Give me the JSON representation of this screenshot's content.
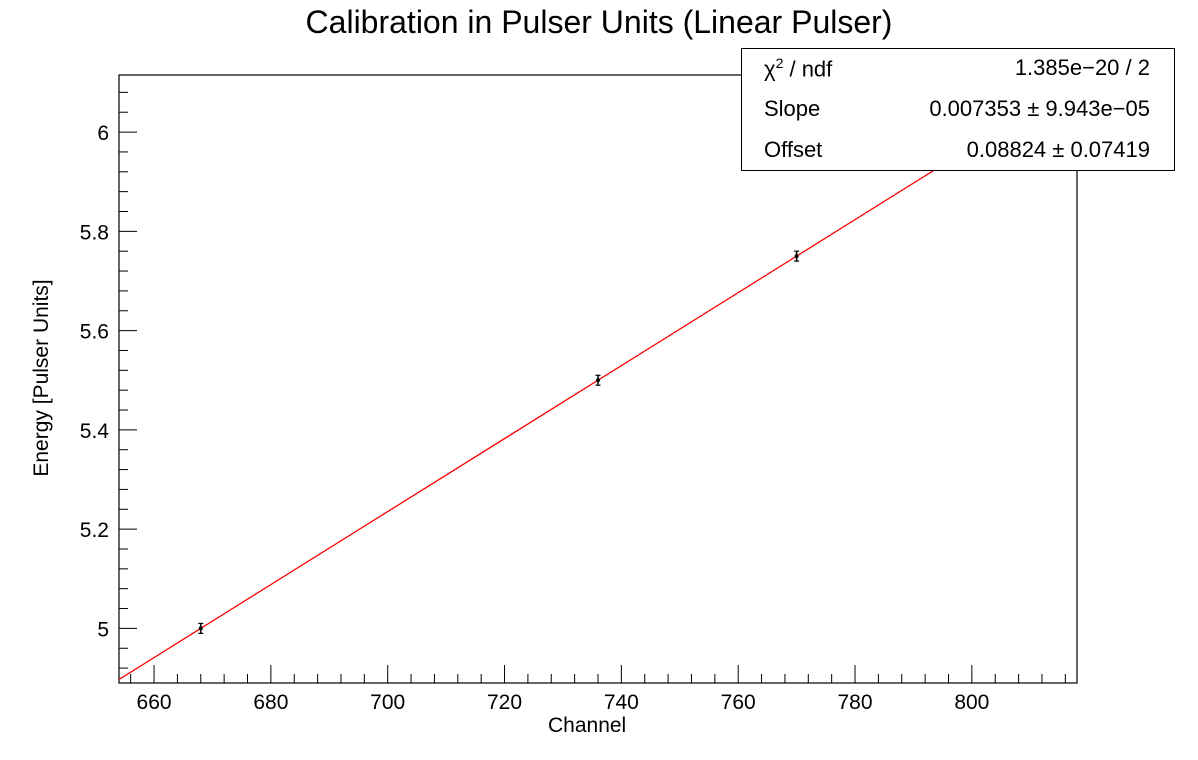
{
  "chart_data": {
    "type": "scatter",
    "title": "Calibration in Pulser Units (Linear Pulser)",
    "xlabel": "Channel",
    "ylabel": "Energy [Pulser Units]",
    "xlim": [
      654,
      818
    ],
    "ylim": [
      4.89,
      6.115
    ],
    "x_ticks": [
      660,
      680,
      700,
      720,
      740,
      760,
      780,
      800
    ],
    "y_ticks": [
      5,
      5.2,
      5.4,
      5.6,
      5.8,
      6
    ],
    "series": [
      {
        "points": [
          {
            "x": 668,
            "y": 5.0,
            "yerr": 0.01
          },
          {
            "x": 736,
            "y": 5.5,
            "yerr": 0.01
          },
          {
            "x": 770,
            "y": 5.75,
            "yerr": 0.01
          }
        ]
      }
    ],
    "fit": {
      "slope": 0.007353,
      "offset": 0.08824,
      "color": "#ff0000"
    },
    "stats_box": [
      {
        "label": "χ² / ndf",
        "value": "1.385e−20 / 2"
      },
      {
        "label": "Slope",
        "value": "0.007353 ± 9.943e−05"
      },
      {
        "label": "Offset",
        "value": "0.08824 ± 0.07419"
      }
    ],
    "grid": false,
    "legend": "top-right"
  }
}
